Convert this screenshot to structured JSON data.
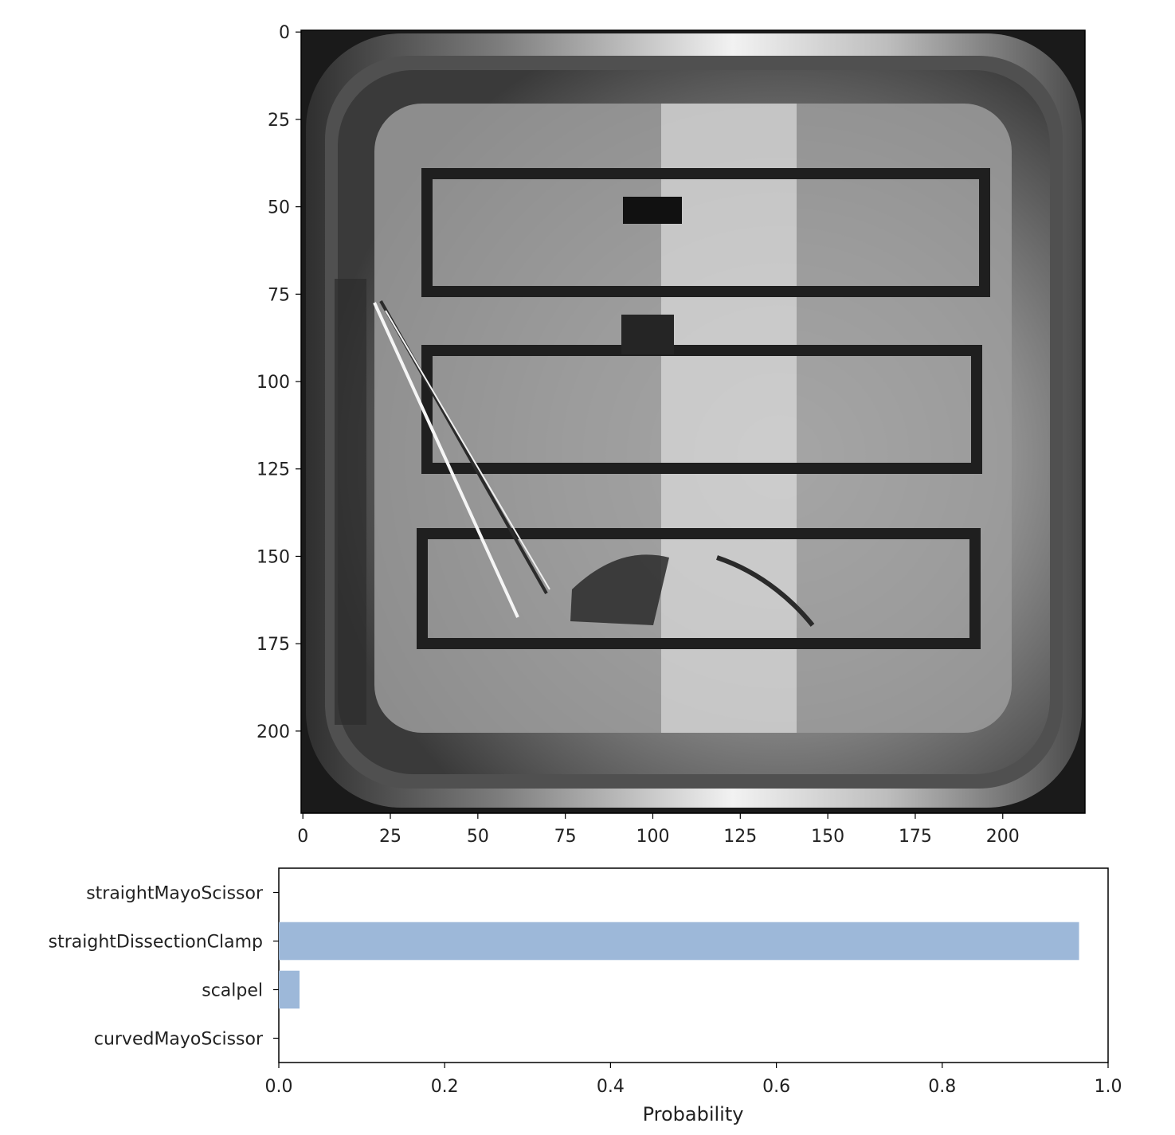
{
  "figure": {
    "image_panel": {
      "type": "image",
      "description_icon": "surgical-tray-photo-icon",
      "x_ticks": [
        "0",
        "25",
        "50",
        "75",
        "100",
        "125",
        "150",
        "175",
        "200"
      ],
      "x_tick_values": [
        0,
        25,
        50,
        75,
        100,
        125,
        150,
        175,
        200
      ],
      "y_ticks": [
        "0",
        "25",
        "50",
        "75",
        "100",
        "125",
        "150",
        "175",
        "200"
      ],
      "y_tick_values": [
        0,
        25,
        50,
        75,
        100,
        125,
        150,
        175,
        200
      ],
      "xlim": [
        -0.5,
        223.5
      ],
      "ylim": [
        223.5,
        -0.5
      ],
      "colormap": "gray"
    }
  },
  "chart_data": {
    "type": "bar",
    "orientation": "horizontal",
    "categories": [
      "straightMayoScissor",
      "straightDissectionClamp",
      "scalpel",
      "curvedMayoScissor"
    ],
    "values": [
      0.0,
      0.965,
      0.025,
      0.0
    ],
    "xlabel": "Probability",
    "ylabel": "",
    "xlim": [
      0.0,
      1.0
    ],
    "x_ticks": [
      "0.0",
      "0.2",
      "0.4",
      "0.6",
      "0.8",
      "1.0"
    ],
    "x_tick_values": [
      0.0,
      0.2,
      0.4,
      0.6,
      0.8,
      1.0
    ],
    "bar_color": "#9db8d9",
    "grid": false
  }
}
